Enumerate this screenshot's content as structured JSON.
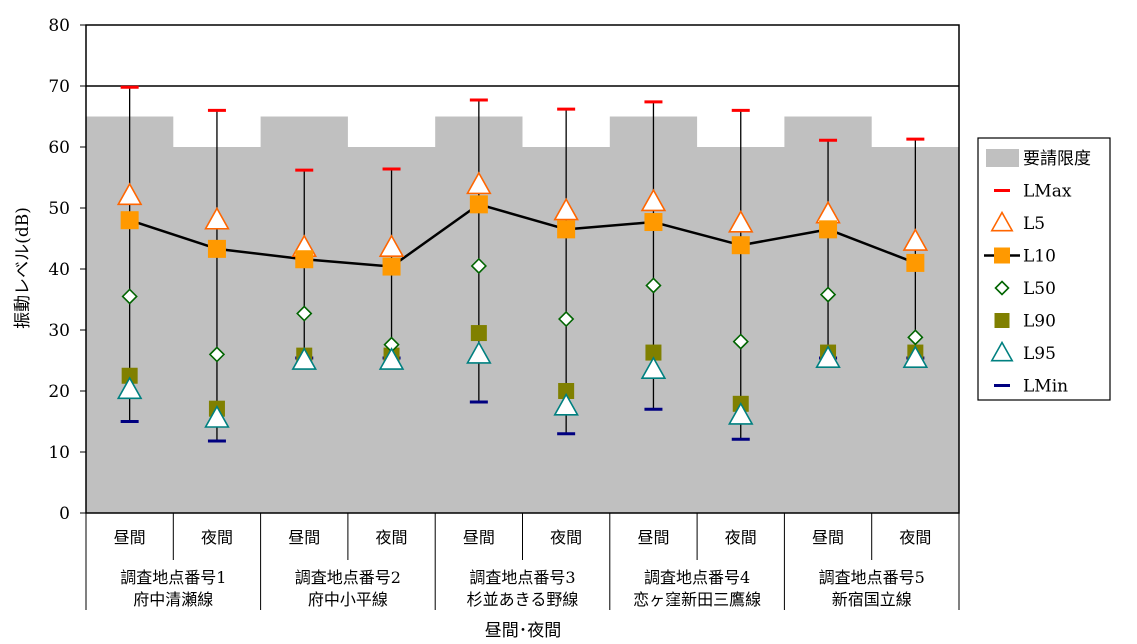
{
  "chart_data": {
    "type": "scatter",
    "title": "",
    "ylabel": "振動レベル(dB)",
    "xlabel": "昼間･夜間",
    "ylim": [
      0,
      80
    ],
    "yticks": [
      0,
      10,
      20,
      30,
      40,
      50,
      60,
      70,
      80
    ],
    "reference_line": 70,
    "grid": false,
    "legend_position": "right",
    "categories": [
      "昼間",
      "夜間",
      "昼間",
      "夜間",
      "昼間",
      "夜間",
      "昼間",
      "夜間",
      "昼間",
      "夜間"
    ],
    "groups": [
      {
        "line1": "調査地点番号1",
        "line2": "府中清瀬線"
      },
      {
        "line1": "調査地点番号2",
        "line2": "府中小平線"
      },
      {
        "line1": "調査地点番号3",
        "line2": "杉並あきる野線"
      },
      {
        "line1": "調査地点番号4",
        "line2": "恋ヶ窪新田三鷹線"
      },
      {
        "line1": "調査地点番号5",
        "line2": "新宿国立線"
      }
    ],
    "series": [
      {
        "name": "要請限度",
        "kind": "area",
        "color": "#c0c0c0",
        "values": [
          65,
          60,
          65,
          60,
          65,
          60,
          65,
          60,
          65,
          60
        ]
      },
      {
        "name": "LMax",
        "kind": "dash",
        "color": "#ff0000",
        "values": [
          69.8,
          66.0,
          56.2,
          56.4,
          67.7,
          66.2,
          67.4,
          66.0,
          61.1,
          61.3
        ]
      },
      {
        "name": "L5",
        "kind": "triangle",
        "color": "#ff6600",
        "values": [
          52,
          48,
          43.5,
          43.5,
          53.8,
          49.5,
          51,
          47.5,
          49,
          44.5
        ]
      },
      {
        "name": "L10",
        "kind": "square-line",
        "color": "#ff9900",
        "values": [
          48,
          43.3,
          41.6,
          40.4,
          50.6,
          46.5,
          47.7,
          43.9,
          46.5,
          41
        ]
      },
      {
        "name": "L50",
        "kind": "diamond",
        "color": "#006400",
        "values": [
          35.5,
          26,
          32.7,
          27.6,
          40.5,
          31.8,
          37.3,
          28.1,
          35.8,
          28.8
        ]
      },
      {
        "name": "L90",
        "kind": "square",
        "color": "#808000",
        "values": [
          22.5,
          17.1,
          25.8,
          25.8,
          29.5,
          20,
          26.3,
          17.9,
          26.3,
          26.3
        ]
      },
      {
        "name": "L95",
        "kind": "triangle",
        "color": "#008080",
        "values": [
          20.2,
          15.5,
          25,
          25,
          26,
          17.5,
          23.5,
          16,
          25.3,
          25.3
        ]
      },
      {
        "name": "LMin",
        "kind": "dash",
        "color": "#000080",
        "values": [
          15,
          11.8,
          25.4,
          25.4,
          18.2,
          13,
          17,
          12.1,
          25.4,
          25.4
        ]
      }
    ]
  }
}
